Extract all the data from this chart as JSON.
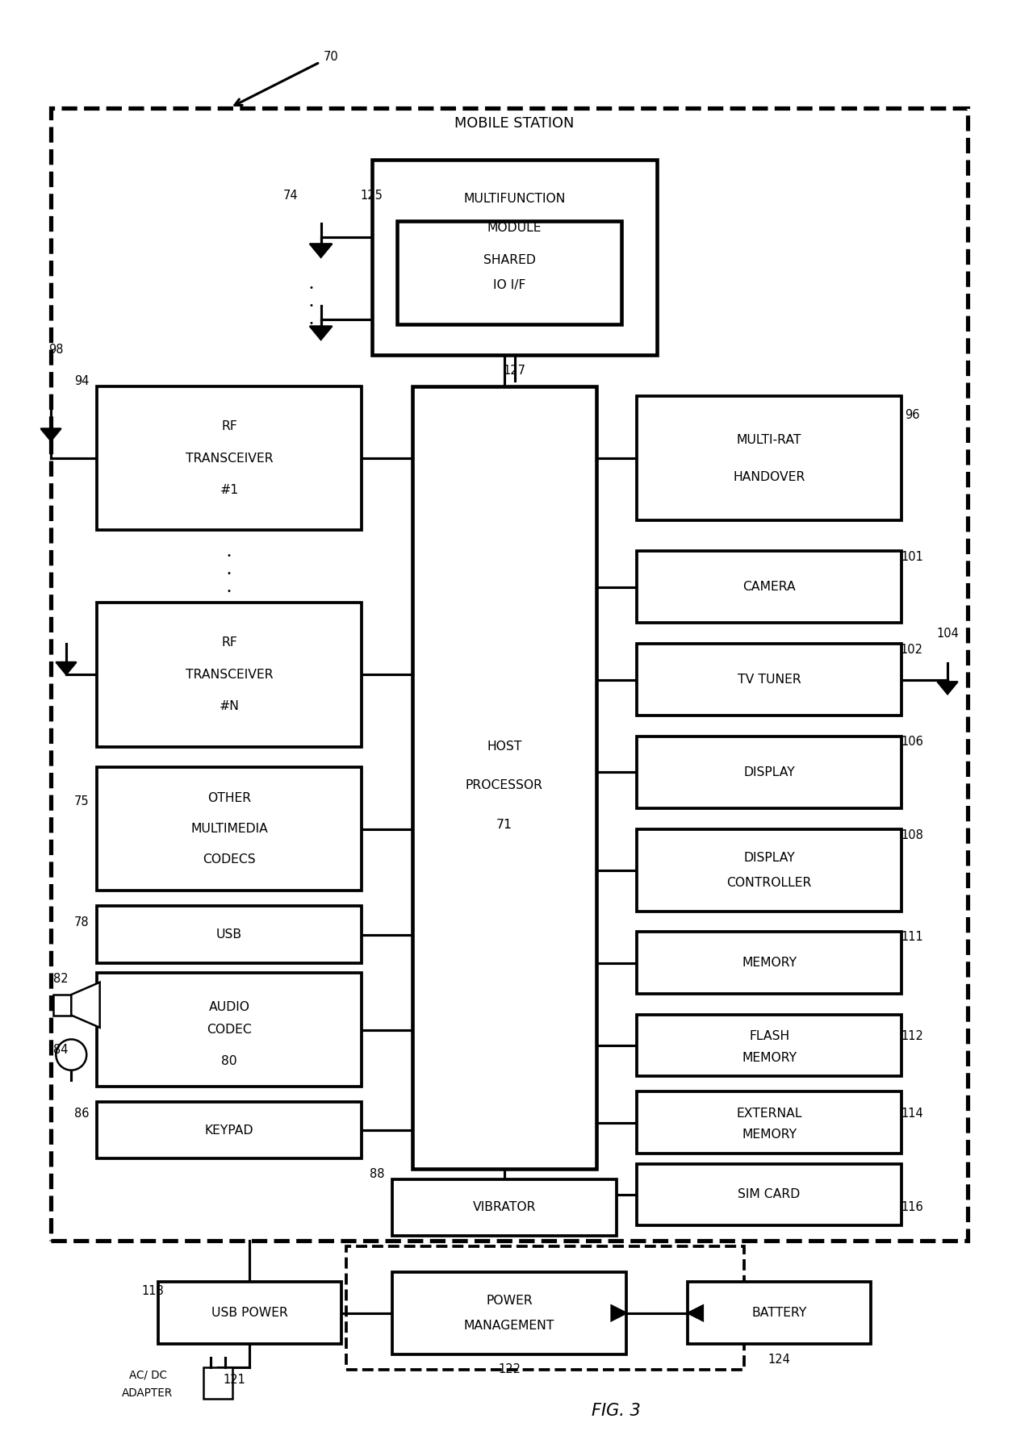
{
  "fig_label": "FIG. 3",
  "bg_color": "#ffffff",
  "mobile_station_label": "MOBILE STATION",
  "labels": {
    "70": "70",
    "74": "74",
    "125": "125",
    "127": "127",
    "94": "94",
    "98": "98",
    "96": "96",
    "101": "101",
    "102": "102",
    "104": "104",
    "106": "106",
    "108": "108",
    "111": "111",
    "112": "112",
    "114": "114",
    "116": "116",
    "75": "75",
    "78": "78",
    "82": "82",
    "84": "84",
    "86": "86",
    "88": "88",
    "118": "118",
    "121": "121",
    "122": "122",
    "124": "124"
  }
}
